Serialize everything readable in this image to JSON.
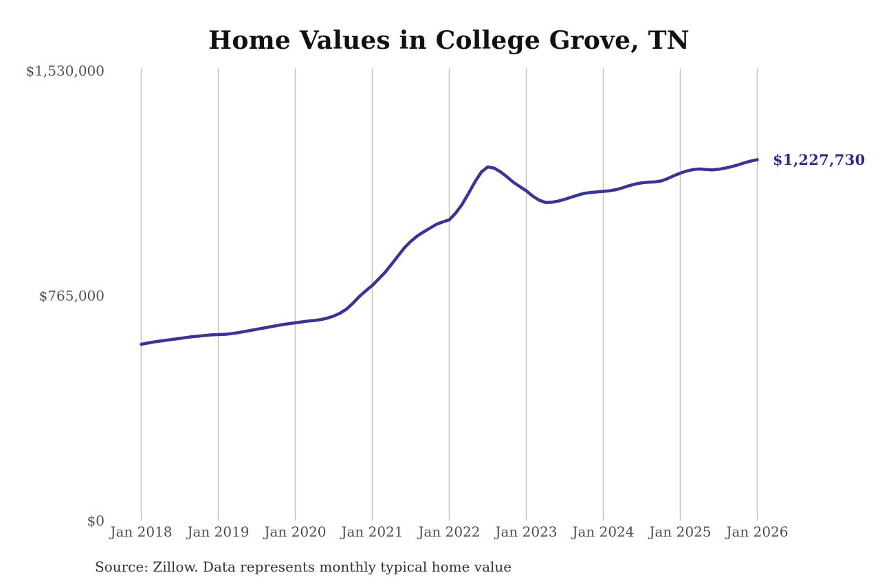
{
  "title": "Home Values in College Grove, TN",
  "source_note": "Source: Zillow. Data represents monthly typical home value",
  "colors": {
    "background": "#ffffff",
    "line": "#3a3594",
    "end_label": "#2e2a8d",
    "grid": "#c0c0c0",
    "tick_label": "#4d4d4d",
    "title": "#111111",
    "source": "#333333"
  },
  "chart_data": {
    "type": "line",
    "title": "Home Values in College Grove, TN",
    "unit": "USD",
    "frequency": "monthly",
    "x_start": "Jan 2018",
    "x_end": "Jan 2026",
    "x_tick_labels": [
      "Jan 2018",
      "Jan 2019",
      "Jan 2020",
      "Jan 2021",
      "Jan 2022",
      "Jan 2023",
      "Jan 2024",
      "Jan 2025",
      "Jan 2026"
    ],
    "y_tick_labels": [
      "$0",
      "$765,000",
      "$1,530,000"
    ],
    "y_tick_values": [
      0,
      765000,
      1530000
    ],
    "ylim": [
      0,
      1530000
    ],
    "grid": "vertical-only",
    "legend": "none",
    "end_label": "$1,227,730",
    "last_value": 1227730,
    "series": [
      {
        "name": "Typical home value",
        "values": [
          600000,
          604000,
          608000,
          611000,
          614000,
          617000,
          620000,
          623000,
          626000,
          628000,
          630000,
          632000,
          633000,
          634000,
          636000,
          639000,
          643000,
          647000,
          651000,
          655000,
          659000,
          663000,
          667000,
          670000,
          673000,
          676000,
          679000,
          681000,
          684000,
          689000,
          696000,
          706000,
          720000,
          740000,
          763000,
          782000,
          800000,
          822000,
          845000,
          872000,
          900000,
          928000,
          950000,
          968000,
          982000,
          995000,
          1008000,
          1016000,
          1023000,
          1046000,
          1076000,
          1113000,
          1152000,
          1186000,
          1203000,
          1199000,
          1186000,
          1169000,
          1151000,
          1136000,
          1122000,
          1104000,
          1090000,
          1082000,
          1083000,
          1087000,
          1093000,
          1100000,
          1107000,
          1113000,
          1116000,
          1118000,
          1120000,
          1122000,
          1126000,
          1132000,
          1139000,
          1145000,
          1149000,
          1151000,
          1152000,
          1155000,
          1163000,
          1173000,
          1182000,
          1189000,
          1194000,
          1196000,
          1194000,
          1193000,
          1195000,
          1199000,
          1204000,
          1210000,
          1217000,
          1223000,
          1227730
        ]
      }
    ]
  }
}
